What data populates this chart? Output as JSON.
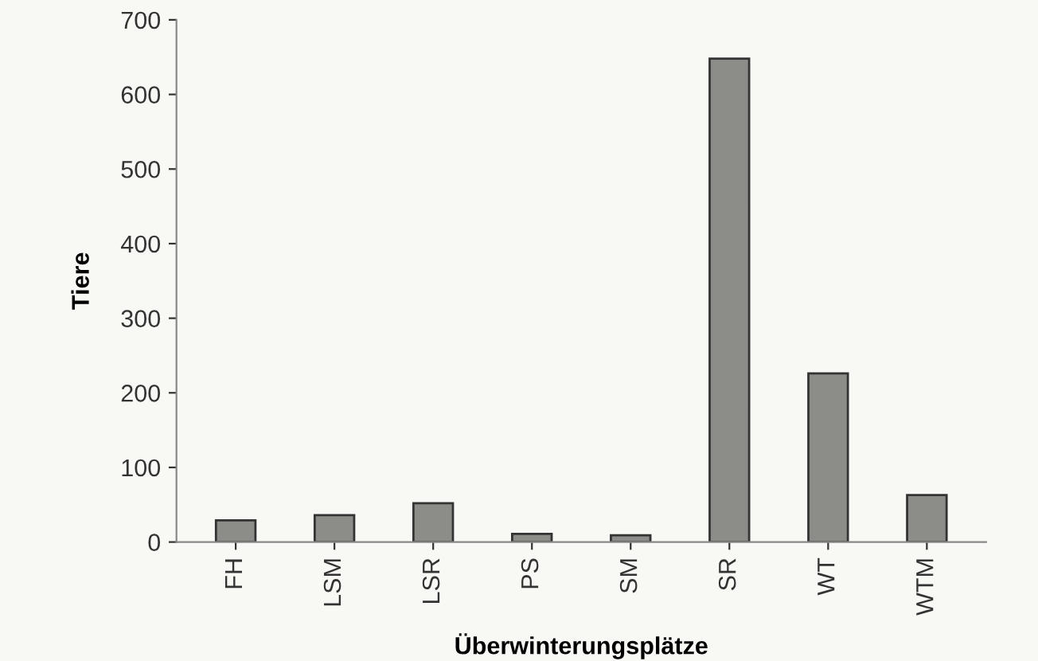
{
  "chart_data": {
    "type": "bar",
    "xlabel": "Überwinterungsplätze",
    "ylabel": "Tiere",
    "categories": [
      "FH",
      "LSM",
      "LSR",
      "PS",
      "SM",
      "SR",
      "WT",
      "WTM"
    ],
    "values": [
      29,
      36,
      52,
      11,
      9,
      648,
      226,
      63
    ],
    "color": "#8c8c88",
    "ylim": [
      0,
      700
    ],
    "yticks": [
      0,
      100,
      200,
      300,
      400,
      500,
      600,
      700
    ],
    "grid": false
  }
}
